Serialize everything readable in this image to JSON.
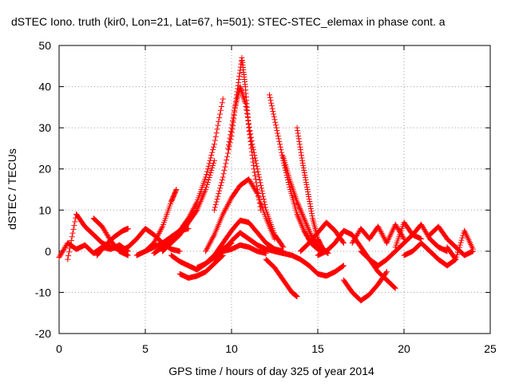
{
  "chart_data": {
    "type": "scatter",
    "title": "dSTEC Iono. truth (kir0, Lon=21, Lat=67, h=501): STEC-STEC_elemax in phase cont. a",
    "xlabel": "GPS time / hours of day 325 of year 2014",
    "ylabel": "dSTEC  / TECUs",
    "xlim": [
      0,
      25
    ],
    "ylim": [
      -20,
      50
    ],
    "x_ticks": [
      0,
      5,
      10,
      15,
      20,
      25
    ],
    "y_ticks": [
      -20,
      -10,
      0,
      10,
      20,
      30,
      40,
      50
    ],
    "grid": true,
    "marker": "+",
    "marker_color": "#ff0000",
    "series": [
      {
        "x": [
          0.0,
          0.5,
          1.0,
          1.5,
          2.0,
          2.5,
          3.0,
          3.5,
          4.0
        ],
        "y": [
          -1.5,
          2.0,
          0.5,
          1.5,
          -0.5,
          1.0,
          0.5,
          1.5,
          0.0
        ]
      },
      {
        "x": [
          0.5,
          1.0,
          1.5,
          2.0,
          2.5,
          3.0,
          3.5
        ],
        "y": [
          -2.0,
          9.0,
          6.0,
          4.0,
          2.0,
          1.0,
          0.5
        ]
      },
      {
        "x": [
          2.0,
          2.5,
          3.0,
          3.5,
          4.0
        ],
        "y": [
          8.0,
          6.0,
          2.5,
          0.0,
          -1.0
        ]
      },
      {
        "x": [
          2.2,
          2.7,
          3.2,
          3.7,
          4.0
        ],
        "y": [
          -1.0,
          1.5,
          3.5,
          5.0,
          5.5
        ]
      },
      {
        "x": [
          3.5,
          4.0,
          4.5,
          5.0,
          5.5,
          6.0,
          6.5,
          7.0
        ],
        "y": [
          0.0,
          1.0,
          3.0,
          5.5,
          4.0,
          2.0,
          0.5,
          0.0
        ]
      },
      {
        "x": [
          5.0,
          5.5,
          6.0,
          6.5,
          6.8
        ],
        "y": [
          0.0,
          2.0,
          6.0,
          12.0,
          15.0
        ]
      },
      {
        "x": [
          4.5,
          5.0,
          5.5,
          6.0,
          6.5,
          7.0,
          7.5
        ],
        "y": [
          -1.0,
          0.0,
          1.0,
          2.0,
          3.5,
          5.0,
          5.5
        ]
      },
      {
        "x": [
          5.5,
          6.0,
          6.5,
          7.0,
          7.5,
          8.0,
          8.5,
          9.0,
          9.5
        ],
        "y": [
          -0.5,
          1.0,
          2.5,
          5.0,
          8.0,
          12.0,
          18.0,
          26.0,
          37.0
        ]
      },
      {
        "x": [
          6.0,
          6.5,
          7.0,
          7.5,
          8.0,
          8.5,
          9.0
        ],
        "y": [
          0.0,
          2.0,
          4.0,
          7.0,
          10.0,
          15.0,
          22.0
        ]
      },
      {
        "x": [
          7.0,
          7.5,
          8.0,
          8.5,
          9.0,
          9.5
        ],
        "y": [
          -5.5,
          -6.5,
          -6.0,
          -5.0,
          -3.0,
          -1.0
        ]
      },
      {
        "x": [
          6.5,
          7.0,
          7.5,
          8.0,
          8.5,
          9.0,
          9.5,
          10.0
        ],
        "y": [
          -1.0,
          -2.5,
          -3.5,
          -4.5,
          -3.0,
          -1.5,
          0.5,
          2.0
        ]
      },
      {
        "x": [
          8.0,
          8.5,
          9.0,
          9.5,
          10.0,
          10.5,
          11.0,
          11.5,
          12.0,
          12.5,
          13.0
        ],
        "y": [
          -4.0,
          -3.0,
          -1.0,
          2.0,
          5.0,
          7.5,
          7.0,
          4.5,
          2.0,
          0.5,
          0.0
        ]
      },
      {
        "x": [
          9.0,
          9.5,
          10.0,
          10.5,
          11.0,
          11.5,
          12.0,
          12.5,
          13.0
        ],
        "y": [
          -2.0,
          0.0,
          2.5,
          4.5,
          3.0,
          1.5,
          0.5,
          0.0,
          -0.5
        ]
      },
      {
        "x": [
          9.0,
          9.5,
          10.0,
          10.3,
          10.6,
          10.8,
          11.0,
          11.3,
          11.7
        ],
        "y": [
          10.0,
          18.0,
          28.0,
          38.0,
          47.0,
          40.0,
          30.0,
          20.0,
          10.0
        ]
      },
      {
        "x": [
          9.8,
          10.2,
          10.5,
          10.8,
          11.2,
          11.6,
          12.0,
          12.5,
          13.0
        ],
        "y": [
          25.0,
          35.0,
          40.0,
          36.0,
          26.0,
          18.0,
          10.0,
          4.0,
          1.0
        ]
      },
      {
        "x": [
          8.5,
          9.0,
          9.5,
          10.0,
          10.5,
          11.0,
          11.5,
          12.0,
          12.5
        ],
        "y": [
          0.0,
          4.0,
          9.0,
          13.0,
          16.0,
          17.5,
          14.0,
          8.0,
          3.0
        ]
      },
      {
        "x": [
          8.5,
          9.0,
          9.5,
          10.0,
          10.5,
          11.0,
          11.5,
          12.0
        ],
        "y": [
          -3.0,
          -1.5,
          0.0,
          0.5,
          1.5,
          1.0,
          0.0,
          -0.5
        ]
      },
      {
        "x": [
          12.2,
          12.6,
          13.0,
          13.4,
          13.8,
          14.2,
          14.6,
          15.0,
          15.5
        ],
        "y": [
          38.0,
          30.0,
          22.0,
          15.0,
          9.0,
          5.0,
          2.0,
          0.5,
          0.0
        ]
      },
      {
        "x": [
          13.0,
          13.4,
          13.8,
          14.2,
          14.6,
          15.0,
          15.5
        ],
        "y": [
          23.0,
          17.0,
          12.0,
          8.0,
          4.0,
          1.0,
          0.0
        ]
      },
      {
        "x": [
          13.8,
          14.1,
          14.4,
          14.7,
          15.0,
          15.3,
          15.6
        ],
        "y": [
          30.0,
          22.0,
          15.0,
          8.0,
          3.0,
          0.5,
          -0.5
        ]
      },
      {
        "x": [
          12.0,
          12.5,
          13.0,
          13.5,
          13.8
        ],
        "y": [
          -2.0,
          -4.0,
          -7.0,
          -10.0,
          -11.0
        ]
      },
      {
        "x": [
          12.5,
          13.0,
          13.5,
          14.0,
          14.5,
          15.0,
          15.5,
          16.0,
          16.5
        ],
        "y": [
          0.0,
          -0.5,
          -1.0,
          -2.0,
          -3.5,
          -5.5,
          -6.0,
          -5.0,
          -3.5
        ]
      },
      {
        "x": [
          14.0,
          14.5,
          15.0,
          15.5,
          16.0,
          16.5
        ],
        "y": [
          0.0,
          2.0,
          4.5,
          7.0,
          5.0,
          2.0
        ]
      },
      {
        "x": [
          15.0,
          15.5,
          16.0,
          16.5,
          17.0,
          17.5,
          18.0,
          18.5,
          19.0,
          19.5
        ],
        "y": [
          -1.0,
          0.0,
          2.0,
          5.0,
          4.0,
          1.0,
          -2.0,
          -5.0,
          -7.0,
          -9.0
        ]
      },
      {
        "x": [
          16.5,
          17.0,
          17.5,
          18.0,
          18.5,
          19.0
        ],
        "y": [
          -7.0,
          -10.0,
          -12.0,
          -10.5,
          -8.0,
          -5.0
        ]
      },
      {
        "x": [
          17.0,
          17.5,
          18.0,
          18.5,
          19.0,
          19.5,
          20.0
        ],
        "y": [
          2.0,
          5.5,
          3.0,
          6.0,
          2.0,
          6.5,
          3.0
        ]
      },
      {
        "x": [
          17.5,
          18.0,
          18.5,
          19.0,
          19.5,
          20.0,
          20.5,
          21.0
        ],
        "y": [
          0.0,
          -2.0,
          -3.5,
          -2.0,
          0.0,
          2.0,
          4.0,
          3.0
        ]
      },
      {
        "x": [
          19.5,
          20.0,
          20.5,
          21.0,
          21.5,
          22.0,
          22.5
        ],
        "y": [
          1.0,
          7.0,
          4.0,
          6.5,
          3.0,
          1.0,
          0.0
        ]
      },
      {
        "x": [
          20.0,
          20.5,
          21.0,
          21.5,
          22.0,
          22.5,
          23.0
        ],
        "y": [
          -1.0,
          0.0,
          2.0,
          0.0,
          -2.0,
          -3.5,
          -2.0
        ]
      },
      {
        "x": [
          21.5,
          22.0,
          22.5,
          23.0,
          23.5,
          24.0
        ],
        "y": [
          4.0,
          6.0,
          3.0,
          1.0,
          -1.0,
          0.0
        ]
      },
      {
        "x": [
          22.5,
          23.0,
          23.5,
          24.0
        ],
        "y": [
          1.0,
          -2.0,
          5.0,
          0.5
        ]
      }
    ]
  }
}
